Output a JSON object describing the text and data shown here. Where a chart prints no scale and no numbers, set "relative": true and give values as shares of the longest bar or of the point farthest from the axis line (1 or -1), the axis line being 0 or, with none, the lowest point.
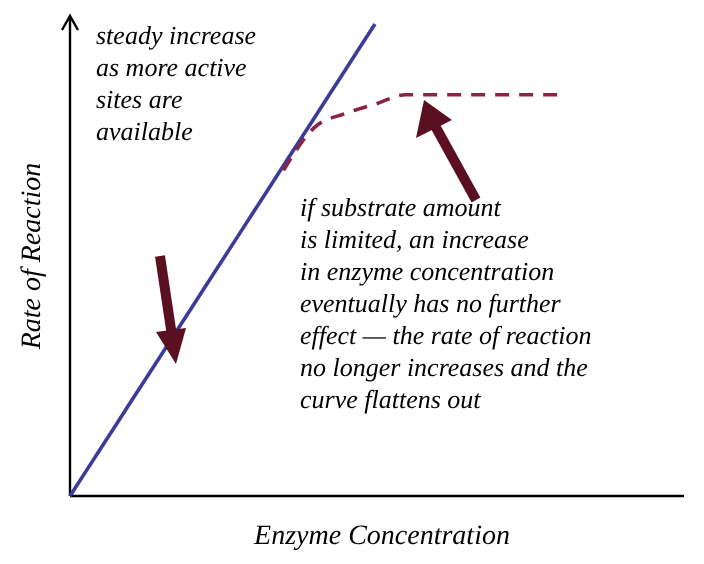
{
  "chart_data": {
    "type": "line",
    "relative": true,
    "xlabel": "Enzyme Concentration",
    "ylabel": "Rate of Reaction",
    "categories": [
      null,
      null,
      null,
      null,
      null,
      null,
      null,
      null,
      null,
      null,
      null,
      null,
      null,
      null,
      null,
      null,
      null,
      null,
      null,
      null,
      null
    ],
    "series": [
      {
        "color": "#3b3b9c",
        "line_style": "solid",
        "values": [
          0,
          0.1,
          0.2,
          0.3,
          0.4,
          0.5,
          0.6,
          0.7,
          0.8,
          0.9,
          1,
          null,
          null,
          null,
          null,
          null,
          null,
          null,
          null,
          null,
          null
        ]
      },
      {
        "color": "#8c2344",
        "line_style": "dashed",
        "values": [
          null,
          null,
          null,
          null,
          null,
          null,
          null,
          0.69,
          0.78,
          0.81,
          0.83,
          0.85,
          0.85,
          0.85,
          0.85,
          0.85,
          0.85,
          null,
          null,
          null,
          null
        ]
      }
    ],
    "annotations": [
      "steady increase\nas more active\nsites are\navailable",
      "if substrate amount\nis limited, an increase\nin enzyme concentration\neventually has no further\neffect — the rate of reaction\nno longer increases and the\ncurve flattens out"
    ],
    "grid": false
  }
}
